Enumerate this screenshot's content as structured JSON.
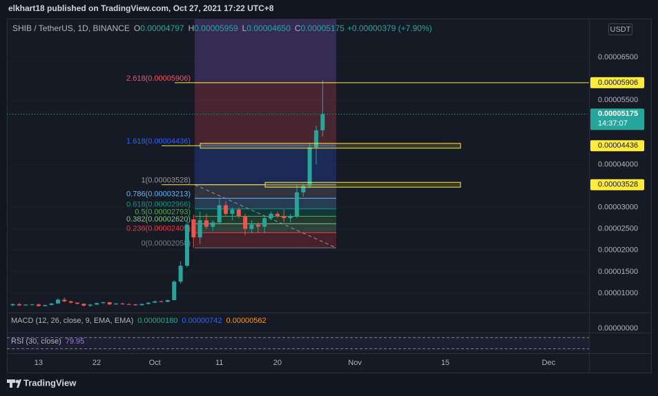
{
  "header": {
    "published": "elkhart18 published on TradingView.com, Oct 27, 2021 17:22 UTC+8",
    "symbol": "SHIB / TetherUS, 1D, BINANCE",
    "ohlc": [
      {
        "key": "O",
        "value": "0.00004797"
      },
      {
        "key": "H",
        "value": "0.00005959"
      },
      {
        "key": "L",
        "value": "0.00004650"
      },
      {
        "key": "C",
        "value": "0.00005175"
      }
    ],
    "change": "+0.00000379 (+7.90%)",
    "currency": "USDT"
  },
  "panes": {
    "macd": {
      "label": "MACD (12, 26, close, 9, EMA, EMA)",
      "values": [
        "0.00000180",
        "0.00000742",
        "0.00000562"
      ],
      "zero": "0.00000000"
    },
    "rsi": {
      "label": "RSI (30, close)",
      "value": "79.95"
    }
  },
  "footer": {
    "brand": "TradingView"
  },
  "chart_data": {
    "type": "candlestick",
    "x": [
      null,
      null,
      null,
      null,
      "13",
      null,
      null,
      null,
      null,
      null,
      null,
      null,
      null,
      "22",
      null,
      null,
      null,
      null,
      null,
      null,
      null,
      null,
      "Oct",
      null,
      null,
      null,
      null,
      null,
      null,
      null,
      null,
      null,
      "11",
      null,
      null,
      null,
      null,
      null,
      null,
      null,
      null,
      "20",
      null,
      null,
      null,
      null,
      null,
      null,
      null,
      null,
      null,
      null,
      null,
      "Nov",
      null,
      null,
      null,
      null,
      null,
      null,
      null,
      null,
      null,
      null,
      null,
      null,
      null,
      "15",
      null,
      null,
      null,
      null,
      null,
      null,
      null,
      null,
      null,
      null,
      null,
      null,
      null,
      null,
      null,
      "Dec",
      null,
      null,
      null,
      null,
      null,
      null
    ],
    "open": [
      7.2e-06,
      7.45e-06,
      7.15e-06,
      7.35e-06,
      7.4e-06,
      7e-06,
      7.25e-06,
      7.6e-06,
      8.5e-06,
      8.1e-06,
      7.8e-06,
      7.55e-06,
      7.1e-06,
      7.35e-06,
      7.7e-06,
      7.9e-06,
      7.4e-06,
      7.6e-06,
      7.45e-06,
      7.4e-06,
      7.2e-06,
      7.5e-06,
      7.8e-06,
      8.1e-06,
      8e-06,
      8.4e-06,
      1.27e-05,
      1.64e-05,
      2.72e-05,
      2.3e-05,
      2.7e-05,
      2.55e-05,
      2.65e-05,
      3.05e-05,
      2.85e-05,
      2.95e-05,
      2.8e-05,
      2.5e-05,
      2.6e-05,
      2.55e-05,
      2.75e-05,
      2.85e-05,
      2.8e-05,
      2.75e-05,
      2.8e-05,
      3.35e-05,
      3.5e-05,
      4.4e-05,
      4.797e-05,
      null,
      null,
      null,
      null,
      null,
      null,
      null,
      null,
      null,
      null,
      null,
      null,
      null,
      null,
      null,
      null,
      null,
      null,
      null,
      null,
      null,
      null,
      null,
      null,
      null,
      null,
      null,
      null,
      null,
      null,
      null,
      null,
      null,
      null,
      null,
      null,
      null,
      null,
      null,
      null,
      null
    ],
    "high": [
      7.6e-06,
      7.7e-06,
      7.4e-06,
      7.5e-06,
      7.6e-06,
      7.3e-06,
      7.7e-06,
      8.8e-06,
      9e-06,
      8.3e-06,
      7.9e-06,
      7.6e-06,
      7.5e-06,
      7.8e-06,
      8e-06,
      8e-06,
      7.7e-06,
      7.8e-06,
      7.7e-06,
      7.5e-06,
      7.6e-06,
      7.9e-06,
      8.3e-06,
      8.3e-06,
      8.5e-06,
      1.3e-05,
      1.75e-05,
      2.75e-05,
      2.83e-05,
      2.9e-05,
      2.85e-05,
      2.7e-05,
      3.213e-05,
      3.15e-05,
      3e-05,
      3e-05,
      2.85e-05,
      2.7e-05,
      2.65e-05,
      2.8e-05,
      2.9e-05,
      2.9e-05,
      2.95e-05,
      2.85e-05,
      3.528e-05,
      3.55e-05,
      4.5e-05,
      4.9e-05,
      5.959e-05,
      null,
      null,
      null,
      null,
      null,
      null,
      null,
      null,
      null,
      null,
      null,
      null,
      null,
      null,
      null,
      null,
      null,
      null,
      null,
      null,
      null,
      null,
      null,
      null,
      null,
      null,
      null,
      null,
      null,
      null,
      null,
      null,
      null,
      null,
      null,
      null,
      null,
      null,
      null,
      null,
      null
    ],
    "low": [
      7e-06,
      7e-06,
      7.05e-06,
      7.15e-06,
      6.9e-06,
      6.9e-06,
      7.2e-06,
      7.5e-06,
      7.9e-06,
      7.6e-06,
      7.4e-06,
      6.9e-06,
      6.8e-06,
      7.25e-06,
      7.5e-06,
      7.2e-06,
      7.3e-06,
      7.3e-06,
      7.35e-06,
      7.1e-06,
      7.15e-06,
      7.45e-06,
      7.7e-06,
      7.9e-06,
      7.9e-06,
      8.3e-06,
      1.22e-05,
      1.6e-05,
      2.058e-05,
      2.15e-05,
      2.5e-05,
      2.45e-05,
      2.6e-05,
      2.8e-05,
      2.7e-05,
      2.75e-05,
      2.35e-05,
      2.4e-05,
      2.4e-05,
      2.4e-05,
      2.7e-05,
      2.75e-05,
      2.65e-05,
      2.65e-05,
      2.75e-05,
      3.25e-05,
      3.45e-05,
      4e-05,
      4.65e-05,
      null,
      null,
      null,
      null,
      null,
      null,
      null,
      null,
      null,
      null,
      null,
      null,
      null,
      null,
      null,
      null,
      null,
      null,
      null,
      null,
      null,
      null,
      null,
      null,
      null,
      null,
      null,
      null,
      null,
      null,
      null,
      null,
      null,
      null,
      null,
      null,
      null,
      null,
      null,
      null,
      null
    ],
    "close": [
      7.45e-06,
      7.15e-06,
      7.35e-06,
      7.4e-06,
      7e-06,
      7.25e-06,
      7.6e-06,
      8.5e-06,
      8.1e-06,
      7.8e-06,
      7.55e-06,
      7.1e-06,
      7.35e-06,
      7.7e-06,
      7.9e-06,
      7.4e-06,
      7.6e-06,
      7.45e-06,
      7.4e-06,
      7.2e-06,
      7.5e-06,
      7.8e-06,
      8.1e-06,
      8e-06,
      8.4e-06,
      1.27e-05,
      1.64e-05,
      2.6e-05,
      2.3e-05,
      2.7e-05,
      2.55e-05,
      2.65e-05,
      3.05e-05,
      2.85e-05,
      2.95e-05,
      2.8e-05,
      2.5e-05,
      2.6e-05,
      2.55e-05,
      2.75e-05,
      2.85e-05,
      2.8e-05,
      2.75e-05,
      2.8e-05,
      3.35e-05,
      3.5e-05,
      4.4e-05,
      4.797e-05,
      5.175e-05,
      null,
      null,
      null,
      null,
      null,
      null,
      null,
      null,
      null,
      null,
      null,
      null,
      null,
      null,
      null,
      null,
      null,
      null,
      null,
      null,
      null,
      null,
      null,
      null,
      null,
      null,
      null,
      null,
      null,
      null,
      null,
      null,
      null,
      null,
      null,
      null,
      null,
      null,
      null,
      null,
      null
    ],
    "up_color": "#26a69a",
    "down_color": "#ef5350",
    "ylim": [
      5.66e-06,
      7.383e-05
    ],
    "yticks": [
      {
        "value": 6.5e-05,
        "label": "0.00006500"
      },
      {
        "value": 5.5e-05,
        "label": "0.00005500"
      },
      {
        "value": 4e-05,
        "label": "0.00004000"
      },
      {
        "value": 3e-05,
        "label": "0.00003000"
      },
      {
        "value": 2.5e-05,
        "label": "0.00002500"
      },
      {
        "value": 2e-05,
        "label": "0.00002000"
      },
      {
        "value": 1.5e-05,
        "label": "0.00001500"
      },
      {
        "value": 1e-05,
        "label": "0.00001000"
      }
    ],
    "grid": true,
    "fib_levels": [
      {
        "value": 5.906e-05,
        "label": "2.618(0.00005906)",
        "color": "#f7525f"
      },
      {
        "value": 4.436e-05,
        "label": "1.618(0.00004436)",
        "color": "#2962ff"
      },
      {
        "value": 3.528e-05,
        "label": "1(0.00003528)",
        "color": "#9598a1"
      },
      {
        "value": 3.213e-05,
        "label": "0.786(0.00003213)",
        "color": "#64b5f6"
      },
      {
        "value": 2.966e-05,
        "label": "0.618(0.00002966)",
        "color": "#089981"
      },
      {
        "value": 2.793e-05,
        "label": "0.5(0.00002793)",
        "color": "#4caf50"
      },
      {
        "value": 2.62e-05,
        "label": "0.382(0.00002620)",
        "color": "#81c784"
      },
      {
        "value": 2.409e-05,
        "label": "0.236(0.00002409)",
        "color": "#f23645"
      },
      {
        "value": 2.058e-05,
        "label": "0(0.00002058)",
        "color": "#787b86"
      }
    ],
    "price_labels": [
      {
        "value": 5.906e-05,
        "label": "0.00005906"
      },
      {
        "value": 4.436e-05,
        "label": "0.00004436"
      },
      {
        "value": 3.528e-05,
        "label": "0.00003528"
      }
    ],
    "marker_color": "#ffeb3b",
    "last_price": {
      "value": 5.175e-05,
      "label": "0.00005175",
      "countdown": "14:37:07"
    }
  }
}
